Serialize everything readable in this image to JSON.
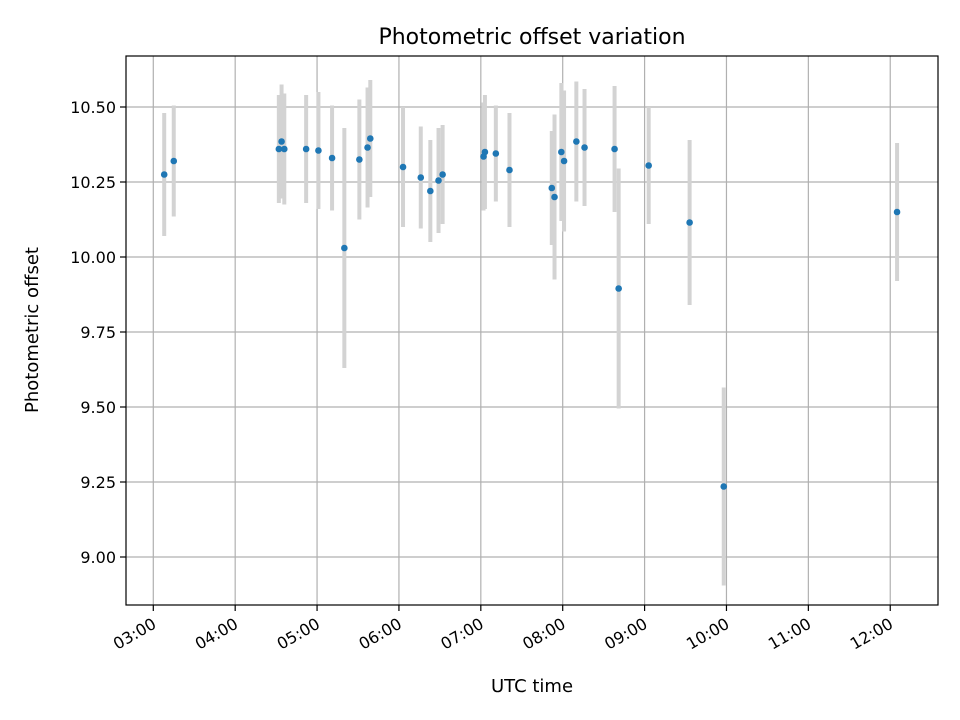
{
  "chart_data": {
    "type": "scatter",
    "title": "Photometric offset variation",
    "xlabel": "UTC time",
    "ylabel": "Photometric offset",
    "grid": true,
    "xlim": [
      "02:40",
      "12:35"
    ],
    "ylim": [
      8.84,
      10.67
    ],
    "xticks": [
      "03:00",
      "04:00",
      "05:00",
      "06:00",
      "07:00",
      "08:00",
      "09:00",
      "10:00",
      "11:00",
      "12:00"
    ],
    "yticks": [
      9.0,
      9.25,
      9.5,
      9.75,
      10.0,
      10.25,
      10.5
    ],
    "ytick_labels": [
      "9.00",
      "9.25",
      "9.50",
      "9.75",
      "10.00",
      "10.25",
      "10.50"
    ],
    "series": [
      {
        "color": "#1f77b4",
        "errorbar_color": "#d3d3d3",
        "points": [
          {
            "x": "03:08",
            "y": 10.275,
            "yerr": 0.205
          },
          {
            "x": "03:15",
            "y": 10.32,
            "yerr": 0.185
          },
          {
            "x": "04:32",
            "y": 10.36,
            "yerr": 0.18
          },
          {
            "x": "04:34",
            "y": 10.385,
            "yerr": 0.19
          },
          {
            "x": "04:36",
            "y": 10.36,
            "yerr": 0.185
          },
          {
            "x": "04:52",
            "y": 10.36,
            "yerr": 0.18
          },
          {
            "x": "05:01",
            "y": 10.355,
            "yerr": 0.195
          },
          {
            "x": "05:11",
            "y": 10.33,
            "yerr": 0.175
          },
          {
            "x": "05:20",
            "y": 10.03,
            "yerr": 0.4
          },
          {
            "x": "05:31",
            "y": 10.325,
            "yerr": 0.2
          },
          {
            "x": "05:37",
            "y": 10.365,
            "yerr": 0.2
          },
          {
            "x": "05:39",
            "y": 10.395,
            "yerr": 0.195
          },
          {
            "x": "06:03",
            "y": 10.3,
            "yerr": 0.2
          },
          {
            "x": "06:16",
            "y": 10.265,
            "yerr": 0.17
          },
          {
            "x": "06:23",
            "y": 10.22,
            "yerr": 0.17
          },
          {
            "x": "06:29",
            "y": 10.255,
            "yerr": 0.175
          },
          {
            "x": "06:32",
            "y": 10.275,
            "yerr": 0.165
          },
          {
            "x": "07:02",
            "y": 10.335,
            "yerr": 0.18
          },
          {
            "x": "07:03",
            "y": 10.35,
            "yerr": 0.19
          },
          {
            "x": "07:11",
            "y": 10.345,
            "yerr": 0.16
          },
          {
            "x": "07:21",
            "y": 10.29,
            "yerr": 0.19
          },
          {
            "x": "07:52",
            "y": 10.23,
            "yerr": 0.19
          },
          {
            "x": "07:54",
            "y": 10.2,
            "yerr": 0.275
          },
          {
            "x": "07:59",
            "y": 10.35,
            "yerr": 0.23
          },
          {
            "x": "08:01",
            "y": 10.32,
            "yerr": 0.235
          },
          {
            "x": "08:10",
            "y": 10.385,
            "yerr": 0.2
          },
          {
            "x": "08:16",
            "y": 10.365,
            "yerr": 0.195
          },
          {
            "x": "08:38",
            "y": 10.36,
            "yerr": 0.21
          },
          {
            "x": "08:41",
            "y": 9.895,
            "yerr": 0.4
          },
          {
            "x": "09:03",
            "y": 10.305,
            "yerr": 0.195
          },
          {
            "x": "09:33",
            "y": 10.115,
            "yerr": 0.275
          },
          {
            "x": "09:58",
            "y": 9.235,
            "yerr": 0.33
          },
          {
            "x": "12:05",
            "y": 10.15,
            "yerr": 0.23
          }
        ]
      }
    ]
  }
}
